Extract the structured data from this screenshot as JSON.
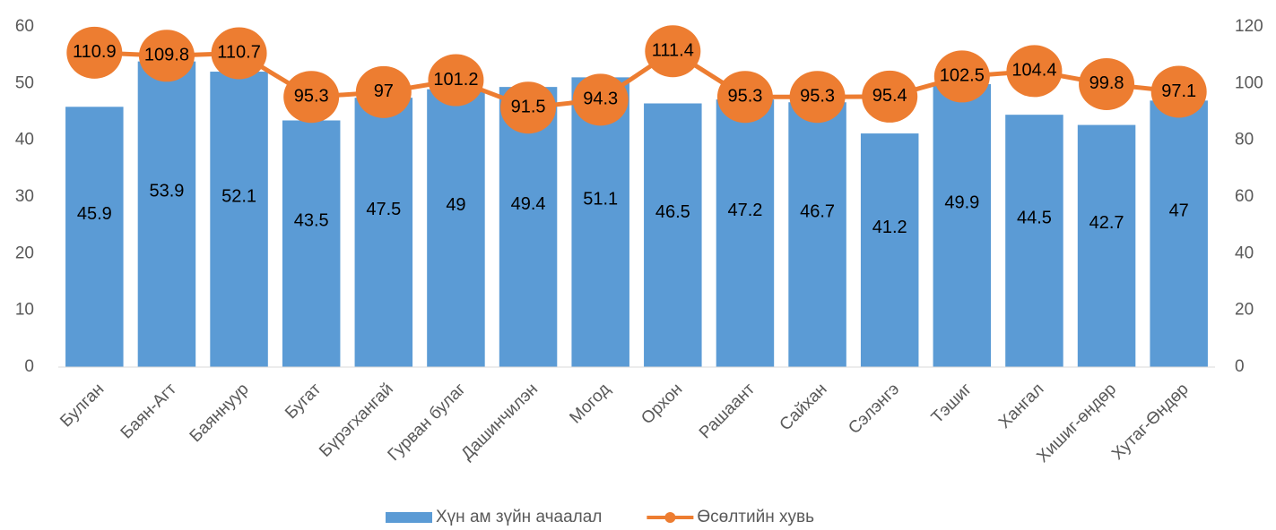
{
  "chart_data": {
    "type": "combo",
    "categories": [
      "Булган",
      "Баян-Агт",
      "Баяннуур",
      "Бугат",
      "Бүрэгхангай",
      "Гурван булаг",
      "Дашинчилэн",
      "Могод",
      "Орхон",
      "Рашаант",
      "Сайхан",
      "Сэлэнгэ",
      "Тэшиг",
      "Хангал",
      "Хишиг-өндөр",
      "Хутаг-Өндөр"
    ],
    "series": [
      {
        "name": "Хүн ам зүйн ачаалал",
        "type": "bar",
        "color": "#5b9bd5",
        "values": [
          45.9,
          53.9,
          52.1,
          43.5,
          47.5,
          49,
          49.4,
          51.1,
          46.5,
          47.2,
          46.7,
          41.2,
          49.9,
          44.5,
          42.7,
          47
        ]
      },
      {
        "name": "Өсөлтийн хувь",
        "type": "line",
        "axis": "y2",
        "color": "#ed7d31",
        "values": [
          110.9,
          109.8,
          110.7,
          95.3,
          97,
          101.2,
          91.5,
          94.3,
          111.4,
          95.3,
          95.3,
          95.4,
          102.5,
          104.4,
          99.8,
          97.1
        ]
      }
    ],
    "ylim": [
      0,
      60
    ],
    "yticks": [
      0,
      10,
      20,
      30,
      40,
      50,
      60
    ],
    "y2lim": [
      0,
      120
    ],
    "y2ticks": [
      0,
      20,
      40,
      60,
      80,
      100,
      120
    ],
    "grid": false,
    "legend": "bottom"
  }
}
